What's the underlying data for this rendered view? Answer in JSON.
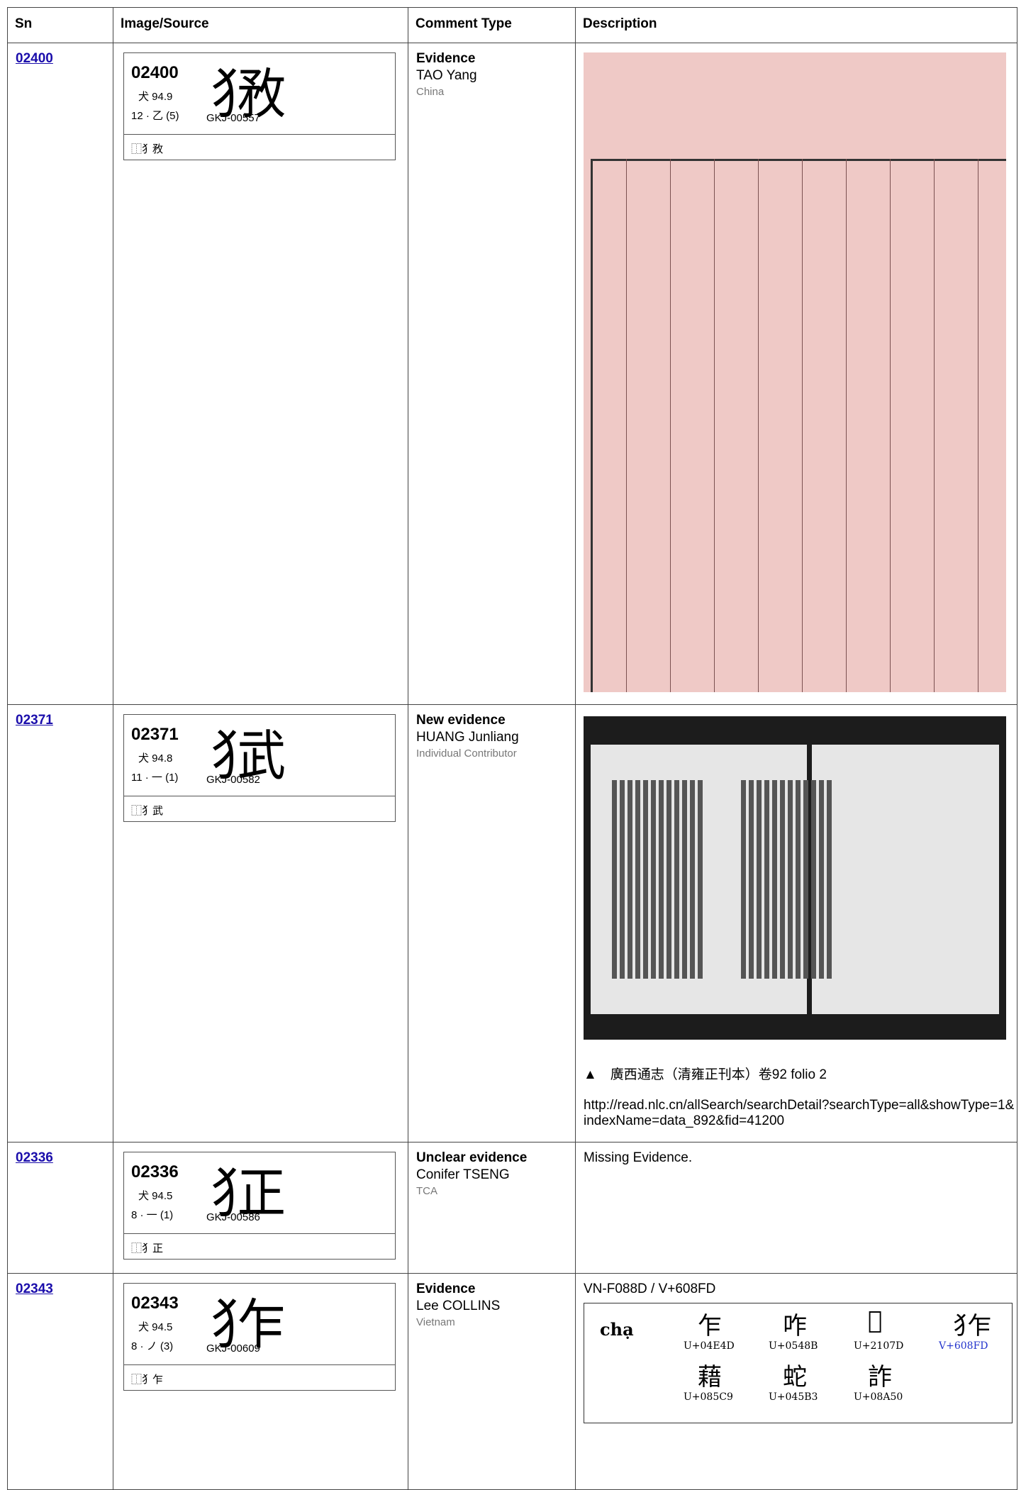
{
  "header": [
    "Sn",
    "Image/Source",
    "Comment Type",
    "Description"
  ],
  "rows": [
    {
      "sn": "02400",
      "card": {
        "code": "02400",
        "radical": "犬 94.9",
        "strokes": "12 · 乙 (5)",
        "glyph": "犭敄",
        "source": "GKJ-00557",
        "ids": "⿰犭敄"
      },
      "comment": {
        "type": "Evidence",
        "author": "TAO Yang",
        "org": "China"
      }
    },
    {
      "sn": "02371",
      "card": {
        "code": "02371",
        "radical": "犬 94.8",
        "strokes": "11 · 一 (1)",
        "glyph": "犭武",
        "source": "GKJ-00582",
        "ids": "⿰犭武"
      },
      "comment": {
        "type": "New evidence",
        "author": "HUANG Junliang",
        "org": "Individual Contributor"
      },
      "description": {
        "caption": "▲　廣西通志（清雍正刊本）卷92 folio 2",
        "url": "http://read.nlc.cn/allSearch/searchDetail?searchType=all&showType=1&indexName=data_892&fid=41200"
      }
    },
    {
      "sn": "02336",
      "card": {
        "code": "02336",
        "radical": "犬 94.5",
        "strokes": "8 · 一 (1)",
        "glyph": "犭正",
        "source": "GKJ-00586",
        "ids": "⿰犭正"
      },
      "comment": {
        "type": "Unclear evidence",
        "author": "Conifer TSENG",
        "org": "TCA"
      },
      "description": {
        "text": "Missing Evidence."
      }
    },
    {
      "sn": "02343",
      "card": {
        "code": "02343",
        "radical": "犬 94.5",
        "strokes": "8 · ノ (3)",
        "glyph": "犭乍",
        "source": "GKJ-00609",
        "ids": "⿰犭乍"
      },
      "comment": {
        "type": "Evidence",
        "author": "Lee COLLINS",
        "org": "Vietnam"
      },
      "description": {
        "text": "VN-F088D / V+608FD",
        "table": {
          "head": "chạ",
          "cells": [
            [
              "乍",
              "U+04E4D"
            ],
            [
              "咋",
              "U+0548B"
            ],
            [
              "𡁽",
              "U+2107D"
            ],
            [
              "犭乍",
              "V+608FD"
            ],
            [
              "藉",
              "U+085C9"
            ],
            [
              "蛇",
              "U+045B3"
            ],
            [
              "詐",
              "U+08A50"
            ]
          ]
        }
      }
    }
  ]
}
